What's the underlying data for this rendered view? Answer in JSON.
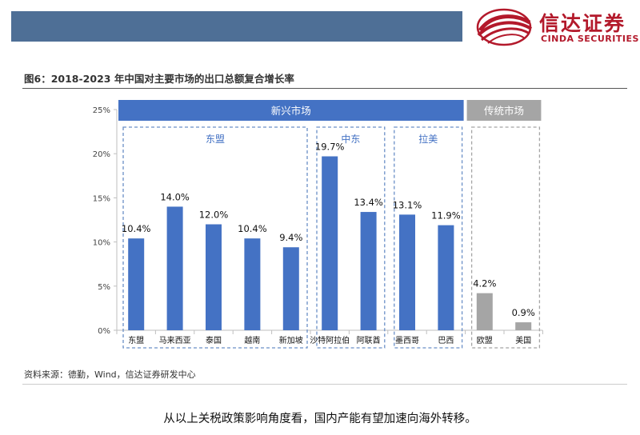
{
  "header": {
    "logo_cn": "信达证券",
    "logo_en": "CINDA SECURITIES",
    "brand_color": "#b3192b",
    "bar_color": "#4e6f96"
  },
  "figure": {
    "title": "图6：2018-2023 年中国对主要市场的出口总额复合增长率",
    "source": "资料来源：德勤，Wind，信达证券研发中心"
  },
  "caption": "从以上关税政策影响角度看，国内产能有望加速向海外转移。",
  "chart_data": {
    "type": "bar",
    "categories": [
      "东盟",
      "马来西亚",
      "泰国",
      "越南",
      "新加坡",
      "沙特阿拉伯",
      "阿联酋",
      "墨西哥",
      "巴西",
      "欧盟",
      "美国"
    ],
    "values": [
      10.4,
      14.0,
      12.0,
      10.4,
      9.4,
      19.7,
      13.4,
      13.1,
      11.9,
      4.2,
      0.9
    ],
    "data_labels": [
      "10.4%",
      "14.0%",
      "12.0%",
      "10.4%",
      "9.4%",
      "19.7%",
      "13.4%",
      "13.1%",
      "11.9%",
      "4.2%",
      "0.9%"
    ],
    "bar_colors": [
      "#4472c4",
      "#4472c4",
      "#4472c4",
      "#4472c4",
      "#4472c4",
      "#4472c4",
      "#4472c4",
      "#4472c4",
      "#4472c4",
      "#a5a5a5",
      "#a5a5a5"
    ],
    "ylim": [
      0,
      25
    ],
    "yticks": [
      0,
      5,
      10,
      15,
      20,
      25
    ],
    "ytick_labels": [
      "0%",
      "5%",
      "10%",
      "15%",
      "20%",
      "25%"
    ],
    "grid": false,
    "top_groups": [
      {
        "label": "新兴市场",
        "from": 0,
        "to": 8,
        "color": "#4472c4"
      },
      {
        "label": "传统市场",
        "from": 9,
        "to": 10,
        "color": "#a5a5a5"
      }
    ],
    "sub_groups": [
      {
        "label": "东盟",
        "from": 0,
        "to": 4,
        "border": "#6a8fc7"
      },
      {
        "label": "中东",
        "from": 5,
        "to": 6,
        "border": "#6a8fc7"
      },
      {
        "label": "拉美",
        "from": 7,
        "to": 8,
        "border": "#6a8fc7"
      },
      {
        "label": "",
        "from": 9,
        "to": 10,
        "border": "#a5a5a5"
      }
    ]
  }
}
